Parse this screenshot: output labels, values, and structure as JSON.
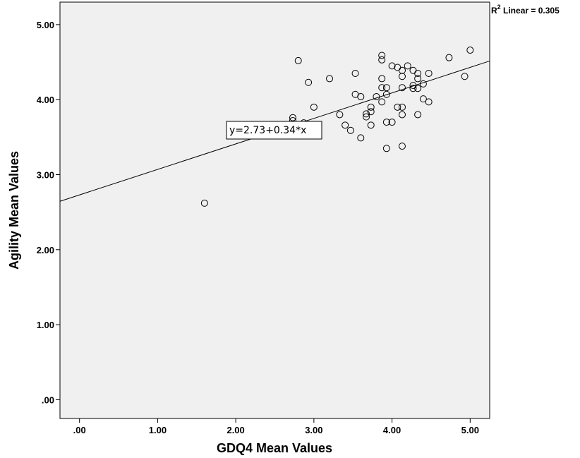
{
  "chart_data": {
    "type": "scatter",
    "xlabel": "GDQ4 Mean Values",
    "ylabel": "Agility Mean Values",
    "xlim": [
      -0.25,
      5.25
    ],
    "ylim": [
      -0.25,
      5.3
    ],
    "x_ticks": [
      ".00",
      "1.00",
      "2.00",
      "3.00",
      "4.00",
      "5.00"
    ],
    "y_ticks": [
      ".00",
      "1.00",
      "2.00",
      "3.00",
      "4.00",
      "5.00"
    ],
    "grid": false,
    "background": "#f0f0f0",
    "marker": "open-circle",
    "fit_line": {
      "intercept": 2.73,
      "slope": 0.34,
      "label": "y=2.73+0.34*x"
    },
    "r2_label": {
      "prefix": "R",
      "sup": "2",
      "suffix": " Linear = 0.305"
    },
    "points": [
      [
        1.6,
        2.62
      ],
      [
        2.73,
        3.76
      ],
      [
        2.73,
        3.72
      ],
      [
        2.8,
        4.52
      ],
      [
        2.87,
        3.69
      ],
      [
        2.93,
        4.23
      ],
      [
        3.0,
        3.9
      ],
      [
        3.2,
        4.28
      ],
      [
        3.33,
        3.8
      ],
      [
        3.4,
        3.66
      ],
      [
        3.47,
        3.59
      ],
      [
        3.53,
        4.35
      ],
      [
        3.53,
        4.07
      ],
      [
        3.6,
        4.04
      ],
      [
        3.6,
        3.49
      ],
      [
        3.67,
        3.81
      ],
      [
        3.67,
        3.77
      ],
      [
        3.73,
        3.9
      ],
      [
        3.73,
        3.84
      ],
      [
        3.73,
        3.66
      ],
      [
        3.8,
        4.04
      ],
      [
        3.87,
        4.59
      ],
      [
        3.87,
        4.53
      ],
      [
        3.87,
        4.28
      ],
      [
        3.87,
        4.16
      ],
      [
        3.87,
        3.97
      ],
      [
        3.93,
        4.16
      ],
      [
        3.93,
        4.07
      ],
      [
        3.93,
        3.7
      ],
      [
        3.93,
        3.35
      ],
      [
        4.0,
        4.45
      ],
      [
        4.0,
        3.7
      ],
      [
        4.07,
        4.43
      ],
      [
        4.07,
        3.9
      ],
      [
        4.13,
        4.39
      ],
      [
        4.13,
        4.31
      ],
      [
        4.13,
        4.16
      ],
      [
        4.13,
        3.9
      ],
      [
        4.13,
        3.8
      ],
      [
        4.13,
        3.38
      ],
      [
        4.2,
        4.45
      ],
      [
        4.27,
        4.39
      ],
      [
        4.27,
        4.19
      ],
      [
        4.27,
        4.15
      ],
      [
        4.33,
        4.35
      ],
      [
        4.33,
        4.28
      ],
      [
        4.33,
        4.15
      ],
      [
        4.33,
        3.8
      ],
      [
        4.4,
        4.21
      ],
      [
        4.4,
        4.01
      ],
      [
        4.47,
        4.35
      ],
      [
        4.47,
        3.97
      ],
      [
        4.73,
        4.56
      ],
      [
        4.93,
        4.31
      ],
      [
        5.0,
        4.66
      ]
    ]
  }
}
